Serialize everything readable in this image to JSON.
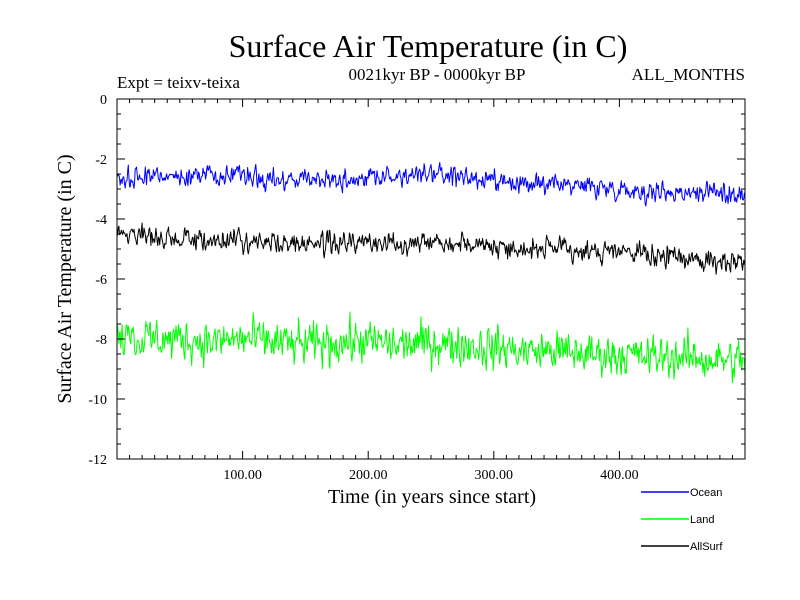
{
  "chart_data": {
    "type": "line",
    "title": "Surface Air Temperature (in C)",
    "subtitle_left": "Expt = teixv-teixa",
    "subtitle_center": "0021kyr BP - 0000kyr BP",
    "subtitle_right": "ALL_MONTHS",
    "xlabel": "Time (in years since start)",
    "ylabel": "Surface Air Temperature (in C)",
    "xlim": [
      0,
      500
    ],
    "ylim": [
      -12,
      0
    ],
    "xticks": [
      100,
      200,
      300,
      400
    ],
    "xtick_labels": [
      "100.00",
      "200.00",
      "300.00",
      "400.00"
    ],
    "yticks": [
      0,
      -2,
      -4,
      -6,
      -8,
      -10,
      -12
    ],
    "ytick_labels": [
      "0",
      "-2",
      "-4",
      "-6",
      "-8",
      "-10",
      "-12"
    ],
    "grid": false,
    "legend_position": "bottom-right, outside plot",
    "series": [
      {
        "name": "Ocean",
        "color": "#0000ff",
        "x": [
          0,
          25,
          50,
          75,
          100,
          125,
          150,
          175,
          200,
          225,
          250,
          275,
          300,
          325,
          350,
          375,
          400,
          425,
          450,
          475,
          500
        ],
        "values": [
          -2.7,
          -2.6,
          -2.6,
          -2.5,
          -2.6,
          -2.7,
          -2.6,
          -2.7,
          -2.6,
          -2.6,
          -2.5,
          -2.6,
          -2.8,
          -2.9,
          -2.8,
          -2.9,
          -3.0,
          -3.1,
          -3.1,
          -3.1,
          -3.2
        ]
      },
      {
        "name": "Land",
        "color": "#00ff00",
        "x": [
          0,
          25,
          50,
          75,
          100,
          125,
          150,
          175,
          200,
          225,
          250,
          275,
          300,
          325,
          350,
          375,
          400,
          425,
          450,
          475,
          500
        ],
        "values": [
          -7.8,
          -8.0,
          -8.0,
          -8.1,
          -8.0,
          -8.1,
          -8.2,
          -8.1,
          -8.1,
          -8.2,
          -8.1,
          -8.2,
          -8.3,
          -8.4,
          -8.4,
          -8.5,
          -8.5,
          -8.6,
          -8.6,
          -8.7,
          -8.7
        ]
      },
      {
        "name": "AllSurf",
        "color": "#000000",
        "x": [
          0,
          25,
          50,
          75,
          100,
          125,
          150,
          175,
          200,
          225,
          250,
          275,
          300,
          325,
          350,
          375,
          400,
          425,
          450,
          475,
          500
        ],
        "values": [
          -4.5,
          -4.6,
          -4.7,
          -4.7,
          -4.7,
          -4.8,
          -4.8,
          -4.8,
          -4.8,
          -4.8,
          -4.7,
          -4.8,
          -4.9,
          -5.0,
          -5.0,
          -5.1,
          -5.1,
          -5.2,
          -5.3,
          -5.4,
          -5.4
        ]
      }
    ]
  }
}
